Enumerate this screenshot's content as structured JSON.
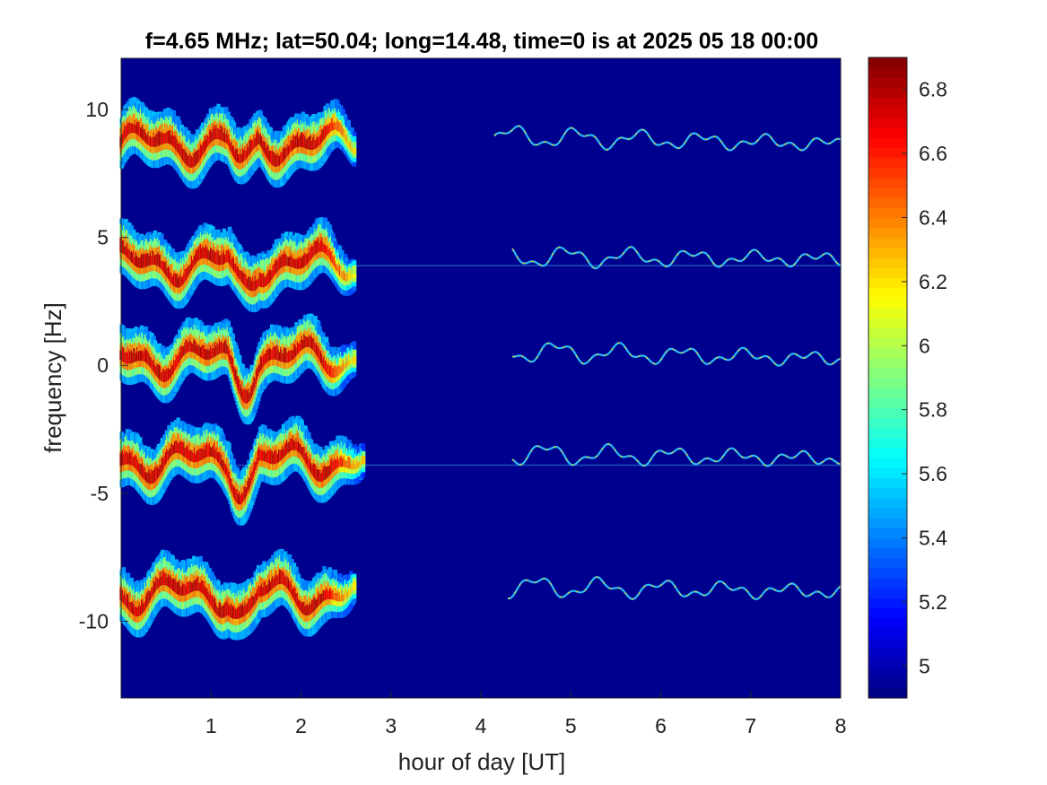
{
  "chart_data": {
    "type": "heatmap",
    "title": "f=4.65 MHz;  lat=50.04; long=14.48, time=0 is at 2025 05 18 00:00",
    "xlabel": "hour of day [UT]",
    "ylabel": "frequency [Hz]",
    "xlim": [
      0,
      8
    ],
    "ylim": [
      -13,
      12
    ],
    "x_ticks": [
      1,
      2,
      3,
      4,
      5,
      6,
      7,
      8
    ],
    "y_ticks": [
      10,
      5,
      0,
      -5,
      -10
    ],
    "colormap": "jet",
    "background_color": "#00008f",
    "colorbar": {
      "range": [
        4.9,
        6.9
      ],
      "ticks": [
        "6.8",
        "6.6",
        "6.4",
        "6.2",
        "6",
        "5.8",
        "5.6",
        "5.4",
        "5.2",
        "5"
      ],
      "tick_values": [
        6.8,
        6.6,
        6.4,
        6.2,
        6.0,
        5.8,
        5.6,
        5.4,
        5.2,
        5.0
      ]
    },
    "traces": [
      {
        "center_hz": 8.7,
        "broad_end_hour": 2.6,
        "thin_start_hour": 4.15,
        "thin_end_center_hz": 8.4
      },
      {
        "center_hz": 4.0,
        "broad_end_hour": 2.6,
        "thin_start_hour": 4.35,
        "thin_end_center_hz": 3.9
      },
      {
        "center_hz": 0.3,
        "broad_end_hour": 2.6,
        "thin_start_hour": 4.35,
        "thin_end_center_hz": 0.0
      },
      {
        "center_hz": -3.7,
        "broad_end_hour": 2.7,
        "thin_start_hour": 4.35,
        "thin_end_center_hz": -3.9
      },
      {
        "center_hz": -8.9,
        "broad_end_hour": 2.6,
        "thin_start_hour": 4.3,
        "thin_end_center_hz": -9.1
      }
    ],
    "carrier_lines_hz": [
      3.9,
      -3.9
    ]
  }
}
